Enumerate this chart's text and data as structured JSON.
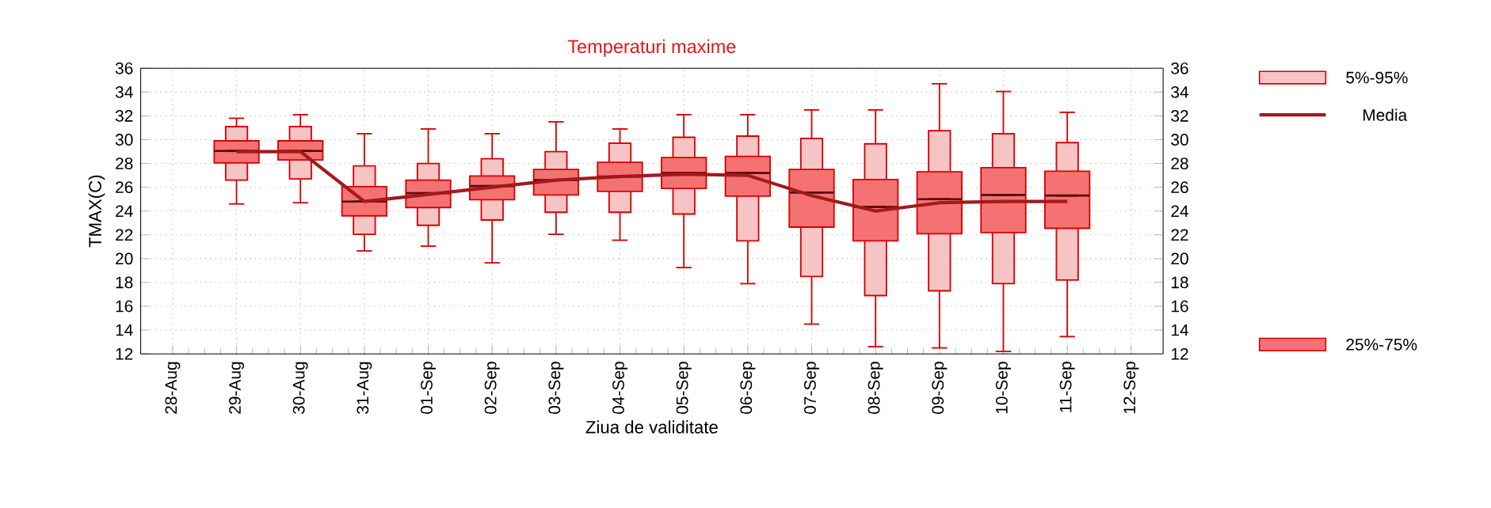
{
  "chart_data": {
    "type": "box",
    "title": "Temperaturi maxime",
    "xlabel": "Ziua de validitate",
    "ylabel": "TMAX(C)",
    "categories": [
      "28-Aug",
      "29-Aug",
      "30-Aug",
      "31-Aug",
      "01-Sep",
      "02-Sep",
      "03-Sep",
      "04-Sep",
      "05-Sep",
      "06-Sep",
      "07-Sep",
      "08-Sep",
      "09-Sep",
      "10-Sep",
      "11-Sep",
      "12-Sep"
    ],
    "ylim": [
      12,
      36
    ],
    "yticks": [
      12,
      14,
      16,
      18,
      20,
      22,
      24,
      26,
      28,
      30,
      32,
      34,
      36
    ],
    "y2lim": [
      12,
      36
    ],
    "y2ticks": [
      12,
      14,
      16,
      18,
      20,
      22,
      24,
      26,
      28,
      30,
      32,
      34,
      36
    ],
    "grid": true,
    "legend": "right",
    "series": [
      {
        "name": "5%-95%",
        "color": "#f6c4c4",
        "boxes": [
          null,
          {
            "low": 24.6,
            "q1": 26.6,
            "median": 29.05,
            "q3": 31.1,
            "high": 31.8
          },
          {
            "low": 24.7,
            "q1": 26.7,
            "median": 29.05,
            "q3": 31.1,
            "high": 32.1
          },
          {
            "low": 20.65,
            "q1": 22.05,
            "median": 24.8,
            "q3": 27.8,
            "high": 30.5
          },
          {
            "low": 21.05,
            "q1": 22.8,
            "median": 25.5,
            "q3": 28.0,
            "high": 30.9
          },
          {
            "low": 19.65,
            "q1": 23.25,
            "median": 26.1,
            "q3": 28.4,
            "high": 30.5
          },
          {
            "low": 22.05,
            "q1": 23.9,
            "median": 26.6,
            "q3": 29.0,
            "high": 31.5
          },
          {
            "low": 21.55,
            "q1": 23.9,
            "median": 26.9,
            "q3": 29.7,
            "high": 30.9
          },
          {
            "low": 19.25,
            "q1": 23.75,
            "median": 27.2,
            "q3": 30.2,
            "high": 32.1
          },
          {
            "low": 17.9,
            "q1": 21.5,
            "median": 27.2,
            "q3": 30.3,
            "high": 32.1
          },
          {
            "low": 14.5,
            "q1": 18.5,
            "median": 25.55,
            "q3": 30.1,
            "high": 32.5
          },
          {
            "low": 12.6,
            "q1": 16.9,
            "median": 24.35,
            "q3": 29.65,
            "high": 32.5
          },
          {
            "low": 12.5,
            "q1": 17.3,
            "median": 25.0,
            "q3": 30.75,
            "high": 34.7
          },
          {
            "low": 12.2,
            "q1": 17.9,
            "median": 25.35,
            "q3": 30.5,
            "high": 34.05
          },
          {
            "low": 13.45,
            "q1": 18.2,
            "median": 25.3,
            "q3": 29.75,
            "high": 32.3
          },
          null
        ]
      },
      {
        "name": "Media",
        "type": "line",
        "color": "#a31a1a",
        "values": [
          null,
          29.0,
          29.0,
          24.8,
          25.4,
          26.0,
          26.6,
          26.9,
          27.1,
          27.0,
          25.3,
          24.0,
          24.7,
          24.8,
          24.8,
          null
        ]
      },
      {
        "name": "25%-75%",
        "color": "#f47272",
        "boxes": [
          null,
          {
            "low": 28.05,
            "q1": 28.05,
            "median": 29.05,
            "q3": 29.9,
            "high": 29.9
          },
          {
            "low": 28.3,
            "q1": 28.3,
            "median": 29.05,
            "q3": 29.9,
            "high": 29.9
          },
          {
            "low": 23.6,
            "q1": 23.6,
            "median": 24.8,
            "q3": 26.05,
            "high": 26.05
          },
          {
            "low": 24.3,
            "q1": 24.3,
            "median": 25.5,
            "q3": 26.6,
            "high": 26.6
          },
          {
            "low": 24.95,
            "q1": 24.95,
            "median": 26.1,
            "q3": 26.95,
            "high": 26.95
          },
          {
            "low": 25.35,
            "q1": 25.35,
            "median": 26.6,
            "q3": 27.5,
            "high": 27.5
          },
          {
            "low": 25.65,
            "q1": 25.65,
            "median": 26.9,
            "q3": 28.1,
            "high": 28.1
          },
          {
            "low": 25.9,
            "q1": 25.9,
            "median": 27.2,
            "q3": 28.5,
            "high": 28.5
          },
          {
            "low": 25.25,
            "q1": 25.25,
            "median": 27.2,
            "q3": 28.6,
            "high": 28.6
          },
          {
            "low": 22.65,
            "q1": 22.65,
            "median": 25.55,
            "q3": 27.5,
            "high": 27.5
          },
          {
            "low": 21.5,
            "q1": 21.5,
            "median": 24.35,
            "q3": 26.65,
            "high": 26.65
          },
          {
            "low": 22.1,
            "q1": 22.1,
            "median": 25.0,
            "q3": 27.3,
            "high": 27.3
          },
          {
            "low": 22.2,
            "q1": 22.2,
            "median": 25.35,
            "q3": 27.65,
            "high": 27.65
          },
          {
            "low": 22.55,
            "q1": 22.55,
            "median": 25.3,
            "q3": 27.35,
            "high": 27.35
          },
          null
        ]
      }
    ]
  }
}
